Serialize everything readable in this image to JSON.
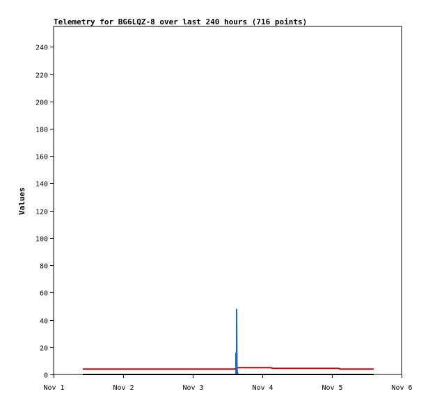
{
  "chart_data": {
    "type": "line",
    "title": "Telemetry for BG6LQZ-8 over last 240 hours (716 points)",
    "xlabel": "",
    "ylabel": "Values",
    "x_tick_labels": [
      "Nov 1",
      "Nov 2",
      "Nov 3",
      "Nov 4",
      "Nov 5",
      "Nov 6"
    ],
    "xlim": [
      0,
      5
    ],
    "ylim": [
      0,
      255
    ],
    "y_ticks": [
      0,
      20,
      40,
      60,
      80,
      100,
      120,
      140,
      160,
      180,
      200,
      220,
      240
    ],
    "grid": false,
    "legend": "none",
    "series": [
      {
        "color": "#cc0000",
        "x": [
          0.42,
          1.0,
          2.0,
          2.6,
          2.65,
          3.13,
          3.14,
          4.0,
          4.1,
          4.11,
          4.6
        ],
        "y": [
          4,
          4,
          4,
          4,
          5,
          5,
          4.5,
          4.5,
          4.5,
          4,
          4
        ]
      },
      {
        "color": "#1f66c8",
        "x": [
          2.6,
          2.62,
          2.62,
          2.63,
          2.63,
          2.635,
          2.64,
          2.64,
          2.65
        ],
        "y": [
          0,
          0,
          16,
          0,
          48,
          8,
          0,
          2,
          0
        ]
      },
      {
        "color": "#000000",
        "x": [
          0.42,
          4.6
        ],
        "y": [
          0,
          0
        ]
      }
    ]
  }
}
